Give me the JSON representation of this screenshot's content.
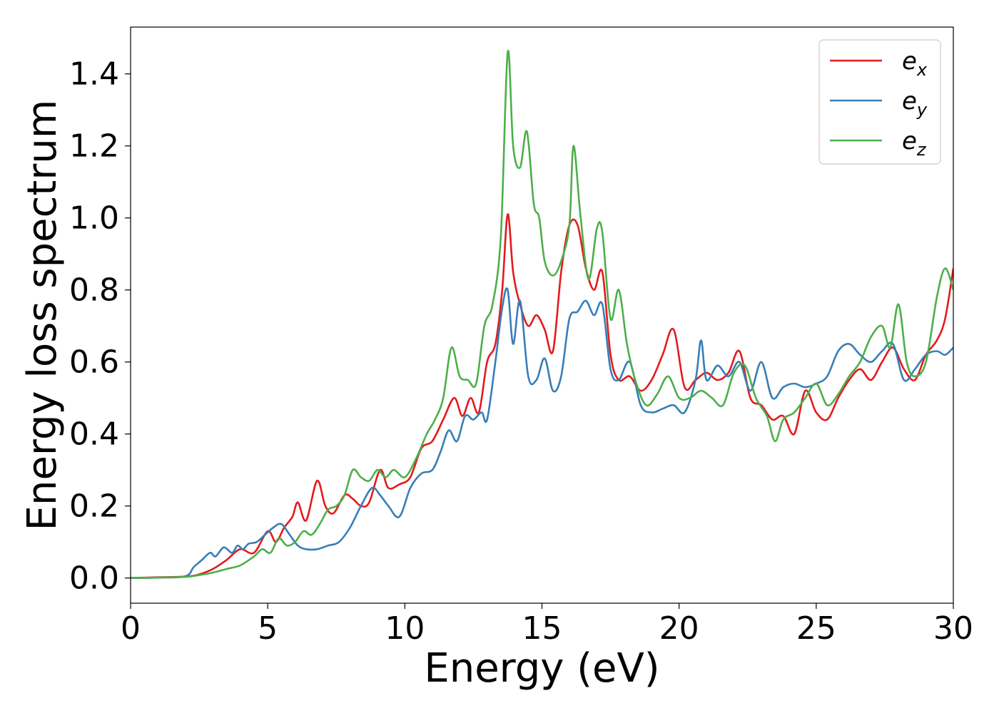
{
  "chart_data": {
    "type": "line",
    "title": "",
    "xlabel": "Energy (eV)",
    "ylabel": "Energy loss spectrum",
    "xlim": [
      0,
      30
    ],
    "ylim": [
      -0.07,
      1.53
    ],
    "xticks": [
      0,
      5,
      10,
      15,
      20,
      25,
      30
    ],
    "xtick_labels": [
      "0",
      "5",
      "10",
      "15",
      "20",
      "25",
      "30"
    ],
    "yticks": [
      0.0,
      0.2,
      0.4,
      0.6,
      0.8,
      1.0,
      1.2,
      1.4
    ],
    "ytick_labels": [
      "0.0",
      "0.2",
      "0.4",
      "0.6",
      "0.8",
      "1.0",
      "1.2",
      "1.4"
    ],
    "grid": false,
    "legend_position": "top-right",
    "series": [
      {
        "name": "e_x",
        "legend_base": "e",
        "legend_sub": "x",
        "color": "#e41a1c",
        "x": [
          0,
          1,
          2,
          2.5,
          3,
          3.5,
          4,
          4.5,
          5,
          5.3,
          5.6,
          5.9,
          6.1,
          6.4,
          6.8,
          7.1,
          7.4,
          7.8,
          8.1,
          8.4,
          8.7,
          9.1,
          9.4,
          9.8,
          10.2,
          10.6,
          11.0,
          11.4,
          11.8,
          12.1,
          12.4,
          12.7,
          13.0,
          13.3,
          13.55,
          13.75,
          13.95,
          14.2,
          14.5,
          14.8,
          15.1,
          15.4,
          15.7,
          16.0,
          16.3,
          16.6,
          16.9,
          17.2,
          17.5,
          17.8,
          18.2,
          18.6,
          19.0,
          19.4,
          19.8,
          20.2,
          20.6,
          21.0,
          21.4,
          21.8,
          22.2,
          22.6,
          23.0,
          23.4,
          23.8,
          24.2,
          24.6,
          25.0,
          25.4,
          25.8,
          26.2,
          26.6,
          27.0,
          27.4,
          27.8,
          28.2,
          28.6,
          29.0,
          29.4,
          29.7,
          30.0
        ],
        "y": [
          0,
          0.002,
          0.004,
          0.01,
          0.025,
          0.05,
          0.08,
          0.07,
          0.13,
          0.1,
          0.14,
          0.17,
          0.21,
          0.16,
          0.27,
          0.2,
          0.18,
          0.23,
          0.22,
          0.2,
          0.21,
          0.3,
          0.25,
          0.26,
          0.28,
          0.36,
          0.38,
          0.44,
          0.5,
          0.45,
          0.5,
          0.46,
          0.6,
          0.65,
          0.8,
          1.01,
          0.85,
          0.76,
          0.7,
          0.73,
          0.69,
          0.63,
          0.85,
          0.98,
          0.98,
          0.86,
          0.8,
          0.85,
          0.62,
          0.55,
          0.56,
          0.52,
          0.55,
          0.62,
          0.69,
          0.53,
          0.55,
          0.57,
          0.55,
          0.57,
          0.63,
          0.5,
          0.48,
          0.44,
          0.45,
          0.4,
          0.52,
          0.46,
          0.44,
          0.5,
          0.55,
          0.58,
          0.55,
          0.6,
          0.64,
          0.58,
          0.55,
          0.62,
          0.66,
          0.72,
          0.86
        ]
      },
      {
        "name": "e_y",
        "legend_base": "e",
        "legend_sub": "y",
        "color": "#377eb8",
        "x": [
          0,
          1,
          2,
          2.3,
          2.6,
          2.9,
          3.1,
          3.4,
          3.7,
          3.9,
          4.1,
          4.3,
          4.6,
          4.9,
          5.2,
          5.5,
          5.8,
          6.1,
          6.4,
          6.8,
          7.2,
          7.6,
          8.0,
          8.4,
          8.8,
          9.1,
          9.4,
          9.8,
          10.2,
          10.6,
          11.0,
          11.3,
          11.6,
          11.9,
          12.2,
          12.5,
          12.8,
          13.0,
          13.3,
          13.55,
          13.75,
          13.95,
          14.2,
          14.5,
          14.8,
          15.1,
          15.4,
          15.7,
          16.0,
          16.3,
          16.6,
          16.9,
          17.2,
          17.5,
          17.8,
          18.2,
          18.6,
          19.0,
          19.4,
          19.8,
          20.2,
          20.6,
          20.8,
          21.0,
          21.4,
          21.8,
          22.2,
          22.6,
          23.0,
          23.4,
          23.8,
          24.2,
          24.6,
          25.0,
          25.4,
          25.8,
          26.2,
          26.6,
          27.0,
          27.4,
          27.8,
          28.2,
          28.6,
          29.0,
          29.4,
          29.7,
          30.0
        ],
        "y": [
          0,
          0.001,
          0.005,
          0.03,
          0.05,
          0.07,
          0.06,
          0.085,
          0.07,
          0.09,
          0.08,
          0.095,
          0.1,
          0.12,
          0.14,
          0.15,
          0.12,
          0.09,
          0.08,
          0.08,
          0.09,
          0.1,
          0.14,
          0.2,
          0.25,
          0.23,
          0.2,
          0.17,
          0.25,
          0.29,
          0.3,
          0.35,
          0.41,
          0.38,
          0.45,
          0.44,
          0.46,
          0.44,
          0.6,
          0.75,
          0.8,
          0.65,
          0.77,
          0.56,
          0.55,
          0.61,
          0.52,
          0.56,
          0.72,
          0.74,
          0.77,
          0.73,
          0.76,
          0.58,
          0.55,
          0.6,
          0.48,
          0.46,
          0.47,
          0.48,
          0.46,
          0.55,
          0.66,
          0.55,
          0.59,
          0.56,
          0.6,
          0.52,
          0.6,
          0.5,
          0.53,
          0.54,
          0.53,
          0.54,
          0.56,
          0.63,
          0.65,
          0.62,
          0.6,
          0.63,
          0.65,
          0.55,
          0.58,
          0.62,
          0.63,
          0.62,
          0.64
        ]
      },
      {
        "name": "e_z",
        "legend_base": "e",
        "legend_sub": "z",
        "color": "#4daf4a",
        "x": [
          0,
          1,
          2,
          2.5,
          3,
          3.5,
          4,
          4.5,
          4.8,
          5.1,
          5.4,
          5.7,
          6.0,
          6.3,
          6.6,
          6.9,
          7.2,
          7.5,
          7.8,
          8.1,
          8.4,
          8.7,
          9.0,
          9.3,
          9.6,
          10.0,
          10.4,
          10.8,
          11.1,
          11.4,
          11.7,
          12.0,
          12.3,
          12.6,
          12.9,
          13.2,
          13.5,
          13.75,
          13.95,
          14.2,
          14.45,
          14.7,
          14.9,
          15.1,
          15.4,
          15.7,
          16.0,
          16.15,
          16.4,
          16.7,
          17.0,
          17.2,
          17.5,
          17.8,
          18.1,
          18.4,
          18.8,
          19.2,
          19.6,
          20.0,
          20.4,
          20.8,
          21.2,
          21.6,
          22.0,
          22.4,
          22.8,
          23.2,
          23.5,
          23.8,
          24.2,
          24.6,
          25.0,
          25.4,
          25.8,
          26.2,
          26.6,
          27.0,
          27.4,
          27.7,
          28.0,
          28.3,
          28.6,
          29.0,
          29.4,
          29.7,
          30.0
        ],
        "y": [
          0,
          0.001,
          0.003,
          0.008,
          0.015,
          0.025,
          0.035,
          0.06,
          0.08,
          0.07,
          0.11,
          0.09,
          0.1,
          0.13,
          0.12,
          0.15,
          0.19,
          0.2,
          0.23,
          0.3,
          0.28,
          0.27,
          0.3,
          0.28,
          0.3,
          0.28,
          0.33,
          0.4,
          0.44,
          0.5,
          0.64,
          0.56,
          0.55,
          0.54,
          0.7,
          0.76,
          0.95,
          1.46,
          1.2,
          1.14,
          1.24,
          1.04,
          1.0,
          0.88,
          0.84,
          0.88,
          0.98,
          1.2,
          1.01,
          0.83,
          0.97,
          0.96,
          0.72,
          0.8,
          0.65,
          0.55,
          0.48,
          0.51,
          0.56,
          0.5,
          0.5,
          0.52,
          0.5,
          0.48,
          0.57,
          0.59,
          0.5,
          0.45,
          0.38,
          0.44,
          0.46,
          0.5,
          0.54,
          0.48,
          0.51,
          0.56,
          0.6,
          0.67,
          0.7,
          0.64,
          0.76,
          0.6,
          0.56,
          0.6,
          0.78,
          0.86,
          0.8
        ]
      }
    ]
  }
}
